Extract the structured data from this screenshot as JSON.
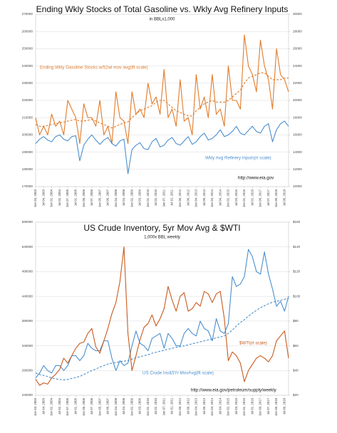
{
  "chart_data": [
    {
      "type": "line",
      "title": "Ending Wkly Stocks of Total Gasoline  vs. Wkly Avg Refinery Inputs",
      "subtitle": "in BBLx1,000",
      "categories": [
        "Jan 03, 2003",
        null,
        "Jul 04, 2003",
        null,
        "Jan 02, 2004",
        null,
        "Jul 02, 2004",
        null,
        "Jan 07, 2005",
        null,
        "Jul 01, 2005",
        null,
        "Jan 06, 2006",
        null,
        "Jul 07, 2006",
        null,
        "Jan 05, 2007",
        null,
        "Jul 06, 2007",
        null,
        "Jan 04, 2008",
        null,
        "Jul 04, 2008",
        null,
        "Jan 02, 2009",
        null,
        "Jul 03, 2009",
        null,
        "Jan 01, 2010",
        null,
        "Jul 02, 2010",
        null,
        "Jan 07, 2011",
        null,
        "Jul 01, 2011",
        null,
        "Jan 06, 2012",
        null,
        "Jul 06, 2012",
        null,
        "Jan 04, 2013",
        null,
        "Jul 05, 2013",
        null,
        "Jan 03, 2014",
        null,
        "Jul 04, 2014",
        null,
        "Jan 02, 2015",
        null,
        "Jul 03, 2015",
        null,
        "Jan 01, 2016",
        null,
        "Jul 01, 2016",
        null,
        "Jan 06, 2017",
        null,
        "Jul 07, 2017",
        null,
        "Jan 05, 2018",
        null,
        "Jul 06, 2018",
        null
      ],
      "series": [
        {
          "color": "#e07b2b",
          "dash": false,
          "axis": "y",
          "values": [
            210000,
            200000,
            205000,
            200000,
            212000,
            205000,
            208000,
            200000,
            220000,
            215000,
            210000,
            195000,
            218000,
            210000,
            210000,
            205000,
            220000,
            200000,
            205000,
            195000,
            225000,
            210000,
            208000,
            195000,
            225000,
            212000,
            215000,
            210000,
            230000,
            218000,
            222000,
            212000,
            238000,
            210000,
            215000,
            205000,
            232000,
            208000,
            210000,
            200000,
            235000,
            215000,
            222000,
            210000,
            235000,
            212000,
            215000,
            205000,
            240000,
            220000,
            220000,
            215000,
            258000,
            240000,
            235000,
            225000,
            255000,
            240000,
            232000,
            215000,
            250000,
            235000,
            232000,
            225000
          ]
        },
        {
          "color": "#e07b2b",
          "dash": true,
          "axis": "y",
          "values": [
            206000,
            205000,
            205000,
            205500,
            206000,
            206500,
            207000,
            207500,
            208000,
            208500,
            209000,
            208000,
            208000,
            208500,
            209000,
            208000,
            207000,
            206000,
            205000,
            204000,
            205000,
            206000,
            207000,
            207500,
            210000,
            212000,
            214000,
            215000,
            216000,
            217000,
            219000,
            220000,
            220000,
            218000,
            216000,
            214000,
            213000,
            212000,
            211000,
            211000,
            214000,
            216000,
            218000,
            219000,
            220000,
            219000,
            219000,
            219000,
            220000,
            222000,
            224000,
            226000,
            230000,
            233000,
            234000,
            235000,
            236000,
            236000,
            234000,
            232000,
            232000,
            232000,
            233000,
            233000
          ]
        },
        {
          "color": "#4a8fcf",
          "dash": false,
          "axis": "y2",
          "values": [
            15000,
            15500,
            15800,
            15400,
            15200,
            15800,
            16000,
            15500,
            15300,
            15800,
            15900,
            13000,
            14800,
            15500,
            16000,
            15400,
            14900,
            15400,
            15700,
            15000,
            14700,
            15300,
            15500,
            11500,
            14300,
            14800,
            15100,
            14400,
            14300,
            15200,
            15600,
            14600,
            14800,
            15400,
            15700,
            15000,
            14800,
            15300,
            15800,
            14900,
            15200,
            15800,
            16200,
            15400,
            15600,
            16000,
            16600,
            15800,
            16000,
            16400,
            17000,
            16200,
            16000,
            16500,
            17000,
            16400,
            16200,
            17000,
            17300,
            15200,
            16600,
            17300,
            17600,
            17000
          ]
        }
      ],
      "annotations": [
        {
          "text": "Ending Wkly Gasoline Stocks w/52wl mov avg(lft scale)",
          "color": "#e07b2b"
        },
        {
          "text": "Wkly Avg Refinery Inputs(rt scale)",
          "color": "#4a8fcf"
        },
        {
          "text": "http://www.eia.gov",
          "color": "#111111"
        }
      ],
      "ylim": [
        170000,
        270000
      ],
      "yticks": [
        170000,
        180000,
        190000,
        200000,
        210000,
        220000,
        230000,
        240000,
        250000,
        260000,
        270000
      ],
      "y2lim": [
        10000,
        30000
      ],
      "y2ticks": [
        10000,
        12000,
        14000,
        16000,
        18000,
        20000,
        22000,
        24000,
        26000,
        28000,
        30000
      ],
      "grid": true
    },
    {
      "type": "line",
      "title": "US Crude Inventory, 5yr Mov Avg & $WTI",
      "subtitle": "1,000x BBL weekly",
      "categories": [
        "Jan 03, 2003",
        null,
        "Jul 04, 2003",
        null,
        "Jan 02, 2004",
        null,
        "Jul 02, 2004",
        null,
        "Jan 07, 2005",
        null,
        "Jul 01, 2005",
        null,
        "Jan 06, 2006",
        null,
        "Jul 07, 2006",
        null,
        "Jan 05, 2007",
        null,
        "Jul 06, 2007",
        null,
        "Jan 04, 2008",
        null,
        "Jul 04, 2008",
        null,
        "Jan 02, 2009",
        null,
        "Jul 03, 2009",
        null,
        "Jan 01, 2010",
        null,
        "Jul 02, 2010",
        null,
        "Jan 07, 2011",
        null,
        "Jul 01, 2011",
        null,
        "Jan 06, 2012",
        null,
        "Jul 06, 2012",
        null,
        "Jan 04, 2013",
        null,
        "Jul 05, 2013",
        null,
        "Jan 03, 2014",
        null,
        "Jul 04, 2014",
        null,
        "Jan 02, 2015",
        null,
        "Jul 03, 2015",
        null,
        "Jan 01, 2016",
        null,
        "Jul 01, 2016",
        null,
        "Jan 06, 2017",
        null,
        "Jul 07, 2017",
        null,
        "Jan 05, 2018",
        null,
        "Jul 06, 2018",
        null
      ],
      "series": [
        {
          "color": "#4a8fcf",
          "dash": false,
          "axis": "y",
          "values": [
            275000,
            285000,
            300000,
            290000,
            285000,
            300000,
            300000,
            290000,
            300000,
            320000,
            320000,
            310000,
            320000,
            345000,
            335000,
            330000,
            330000,
            350000,
            350000,
            315000,
            290000,
            310000,
            300000,
            305000,
            340000,
            370000,
            345000,
            340000,
            330000,
            355000,
            360000,
            365000,
            335000,
            365000,
            355000,
            340000,
            340000,
            365000,
            375000,
            365000,
            360000,
            390000,
            375000,
            370000,
            350000,
            395000,
            370000,
            365000,
            385000,
            480000,
            460000,
            465000,
            480000,
            535000,
            520000,
            490000,
            485000,
            530000,
            485000,
            455000,
            420000,
            430000,
            410000,
            440000
          ]
        },
        {
          "color": "#4a8fcf",
          "dash": true,
          "axis": "y",
          "values": [
            285000,
            282000,
            280000,
            278000,
            275000,
            273000,
            272000,
            271000,
            272000,
            274000,
            276000,
            278000,
            282000,
            286000,
            290000,
            293000,
            297000,
            300000,
            303000,
            305000,
            306000,
            308000,
            309000,
            310000,
            313000,
            316000,
            318000,
            320000,
            322000,
            325000,
            327000,
            329000,
            331000,
            333000,
            335000,
            337000,
            338000,
            340000,
            342000,
            344000,
            346000,
            348000,
            350000,
            352000,
            354000,
            356000,
            358000,
            360000,
            365000,
            372000,
            380000,
            387000,
            393000,
            400000,
            406000,
            412000,
            417000,
            421000,
            425000,
            428000,
            430000,
            432000,
            434000,
            436000
          ]
        },
        {
          "color": "#c85a1e",
          "dash": false,
          "axis": "y2",
          "values": [
            33,
            28,
            30,
            29,
            34,
            37,
            41,
            50,
            46,
            52,
            58,
            62,
            63,
            70,
            74,
            59,
            54,
            64,
            74,
            86,
            95,
            112,
            140,
            70,
            40,
            52,
            65,
            75,
            78,
            85,
            76,
            82,
            90,
            108,
            97,
            88,
            100,
            103,
            88,
            90,
            95,
            92,
            104,
            102,
            95,
            102,
            104,
            82,
            48,
            55,
            52,
            46,
            31,
            40,
            45,
            50,
            52,
            50,
            47,
            52,
            64,
            68,
            72,
            50
          ]
        }
      ],
      "annotations": [
        {
          "text": "$WTI(rt scale)",
          "color": "#c85a1e"
        },
        {
          "text": "US Crude Inv&5Yr MovAvg(lft scale)",
          "color": "#4a8fcf"
        },
        {
          "text": "http://www.eia.gov/petroleum/supply/weekly",
          "color": "#111111"
        }
      ],
      "ylim": [
        240000,
        590000
      ],
      "yticks": [
        240000,
        290000,
        340000,
        390000,
        440000,
        490000,
        540000,
        590000
      ],
      "y2lim": [
        20,
        160
      ],
      "y2ticks": [
        {
          "value": 20,
          "label": "$20"
        },
        {
          "value": 40,
          "label": "$40"
        },
        {
          "value": 60,
          "label": "$60"
        },
        {
          "value": 80,
          "label": "$80"
        },
        {
          "value": 100,
          "label": "$100"
        },
        {
          "value": 120,
          "label": "$120"
        },
        {
          "value": 140,
          "label": "$140"
        },
        {
          "value": 160,
          "label": "$160"
        }
      ],
      "grid": true
    }
  ]
}
